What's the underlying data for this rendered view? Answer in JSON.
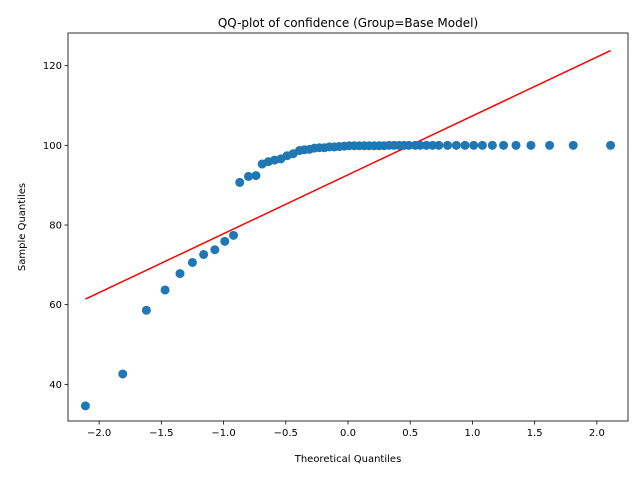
{
  "chart_data": {
    "type": "scatter",
    "title": "QQ-plot of confidence (Group=Base Model)",
    "xlabel": "Theoretical Quantiles",
    "ylabel": "Sample Quantiles",
    "xlim": [
      -2.25,
      2.25
    ],
    "ylim": [
      30.8,
      128.2
    ],
    "xticks": [
      -2.0,
      -1.5,
      -1.0,
      -0.5,
      0.0,
      0.5,
      1.0,
      1.5,
      2.0
    ],
    "xtick_labels": [
      "−2.0",
      "−1.5",
      "−1.0",
      "−0.5",
      "0.0",
      "0.5",
      "1.0",
      "1.5",
      "2.0"
    ],
    "yticks": [
      40,
      60,
      80,
      100,
      120
    ],
    "ytick_labels": [
      "40",
      "60",
      "80",
      "100",
      "120"
    ],
    "grid": false,
    "point_color": "#1f77b4",
    "line_color": "#ff0000",
    "points": [
      {
        "x": -2.11,
        "y": 34.6
      },
      {
        "x": -1.81,
        "y": 42.6
      },
      {
        "x": -1.62,
        "y": 58.6
      },
      {
        "x": -1.47,
        "y": 63.7
      },
      {
        "x": -1.35,
        "y": 67.8
      },
      {
        "x": -1.25,
        "y": 70.6
      },
      {
        "x": -1.16,
        "y": 72.6
      },
      {
        "x": -1.07,
        "y": 73.8
      },
      {
        "x": -0.99,
        "y": 75.9
      },
      {
        "x": -0.92,
        "y": 77.4
      },
      {
        "x": -0.87,
        "y": 90.7
      },
      {
        "x": -0.8,
        "y": 92.2
      },
      {
        "x": -0.74,
        "y": 92.4
      },
      {
        "x": -0.69,
        "y": 95.3
      },
      {
        "x": -0.64,
        "y": 95.9
      },
      {
        "x": -0.59,
        "y": 96.3
      },
      {
        "x": -0.54,
        "y": 96.6
      },
      {
        "x": -0.49,
        "y": 97.4
      },
      {
        "x": -0.44,
        "y": 97.9
      },
      {
        "x": -0.39,
        "y": 98.7
      },
      {
        "x": -0.35,
        "y": 98.9
      },
      {
        "x": -0.31,
        "y": 99.0
      },
      {
        "x": -0.27,
        "y": 99.3
      },
      {
        "x": -0.23,
        "y": 99.4
      },
      {
        "x": -0.19,
        "y": 99.4
      },
      {
        "x": -0.15,
        "y": 99.6
      },
      {
        "x": -0.11,
        "y": 99.6
      },
      {
        "x": -0.07,
        "y": 99.7
      },
      {
        "x": -0.03,
        "y": 99.8
      },
      {
        "x": 0.01,
        "y": 99.9
      },
      {
        "x": 0.05,
        "y": 99.9
      },
      {
        "x": 0.09,
        "y": 99.9
      },
      {
        "x": 0.13,
        "y": 99.9
      },
      {
        "x": 0.17,
        "y": 99.9
      },
      {
        "x": 0.21,
        "y": 99.9
      },
      {
        "x": 0.25,
        "y": 99.9
      },
      {
        "x": 0.29,
        "y": 99.9
      },
      {
        "x": 0.33,
        "y": 100.0
      },
      {
        "x": 0.37,
        "y": 100.0
      },
      {
        "x": 0.41,
        "y": 100.0
      },
      {
        "x": 0.45,
        "y": 100.0
      },
      {
        "x": 0.49,
        "y": 100.0
      },
      {
        "x": 0.54,
        "y": 100.0
      },
      {
        "x": 0.58,
        "y": 100.0
      },
      {
        "x": 0.63,
        "y": 100.0
      },
      {
        "x": 0.68,
        "y": 100.0
      },
      {
        "x": 0.73,
        "y": 100.0
      },
      {
        "x": 0.8,
        "y": 100.0
      },
      {
        "x": 0.87,
        "y": 100.0
      },
      {
        "x": 0.94,
        "y": 100.0
      },
      {
        "x": 1.01,
        "y": 100.0
      },
      {
        "x": 1.08,
        "y": 100.0
      },
      {
        "x": 1.16,
        "y": 100.0
      },
      {
        "x": 1.25,
        "y": 100.0
      },
      {
        "x": 1.35,
        "y": 100.0
      },
      {
        "x": 1.47,
        "y": 100.0
      },
      {
        "x": 1.62,
        "y": 100.0
      },
      {
        "x": 1.81,
        "y": 100.0
      },
      {
        "x": 2.11,
        "y": 100.0
      }
    ],
    "reference_line": {
      "x": [
        -2.11,
        2.11
      ],
      "y": [
        61.4,
        123.8
      ]
    }
  }
}
